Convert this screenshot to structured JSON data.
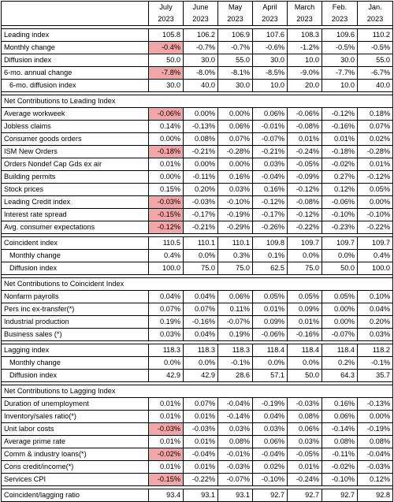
{
  "headers": {
    "months": [
      "July",
      "June",
      "May",
      "April",
      "March",
      "Feb.",
      "Jan."
    ],
    "year": "2023"
  },
  "blocks": [
    {
      "type": "rows",
      "rows": [
        {
          "label": "Leading index",
          "values": [
            "105.8",
            "106.2",
            "106.9",
            "107.6",
            "108.3",
            "109.6",
            "110.2"
          ]
        },
        {
          "label": "Monthly change",
          "values": [
            "-0.4%",
            "-0.7%",
            "-0.7%",
            "-0.6%",
            "-1.2%",
            "-0.5%",
            "-0.5%"
          ],
          "highlight": true
        },
        {
          "label": "Diffusion index",
          "values": [
            "50.0",
            "30.0",
            "55.0",
            "30.0",
            "10.0",
            "30.0",
            "55.0"
          ]
        },
        {
          "label": "6-mo. annual change",
          "values": [
            "-7.8%",
            "-8.0%",
            "-8.1%",
            "-8.5%",
            "-9.0%",
            "-7.7%",
            "-6.7%"
          ],
          "highlight": true
        },
        {
          "label": "6-mo. diffusion index",
          "values": [
            "30.0",
            "40.0",
            "30.0",
            "10.0",
            "20.0",
            "10.0",
            "40.0"
          ],
          "indent": true
        }
      ]
    },
    {
      "type": "section",
      "title": "Net Contributions to Leading Index",
      "rows": [
        {
          "label": "Average workweek",
          "values": [
            "-0.06%",
            "0.00%",
            "0.00%",
            "0.06%",
            "-0.06%",
            "-0.12%",
            "0.18%"
          ],
          "highlight": true
        },
        {
          "label": "Jobless claims",
          "values": [
            "0.14%",
            "-0.13%",
            "0.06%",
            "-0.01%",
            "-0.08%",
            "-0.16%",
            "0.07%"
          ]
        },
        {
          "label": "Consumer goods orders",
          "values": [
            "0.00%",
            "0.08%",
            "0.07%",
            "-0.07%",
            "0.01%",
            "0.01%",
            "0.02%"
          ]
        },
        {
          "label": "ISM New Orders",
          "values": [
            "-0.18%",
            "-0.21%",
            "-0.28%",
            "-0.21%",
            "-0.24%",
            "-0.18%",
            "-0.28%"
          ],
          "highlight": true
        },
        {
          "label": "Orders Nondef Cap Gds ex air",
          "values": [
            "0.01%",
            "0.00%",
            "0.00%",
            "0.03%",
            "-0.05%",
            "-0.02%",
            "0.01%"
          ]
        },
        {
          "label": "Building permits",
          "values": [
            "0.00%",
            "-0.11%",
            "0.16%",
            "-0.04%",
            "-0.09%",
            "0.27%",
            "-0.12%"
          ]
        },
        {
          "label": "Stock prices",
          "values": [
            "0.15%",
            "0.20%",
            "0.03%",
            "0.16%",
            "-0.12%",
            "0.12%",
            "0.05%"
          ]
        },
        {
          "label": "Leading Credit index",
          "values": [
            "-0.03%",
            "-0.03%",
            "-0.10%",
            "-0.12%",
            "-0.08%",
            "-0.06%",
            "0.00%"
          ],
          "highlight": true
        },
        {
          "label": "Interest rate spread",
          "values": [
            "-0.15%",
            "-0.17%",
            "-0.19%",
            "-0.17%",
            "-0.12%",
            "-0.10%",
            "-0.10%"
          ],
          "highlight": true
        },
        {
          "label": "Avg. consumer expectations",
          "values": [
            "-0.12%",
            "-0.21%",
            "-0.29%",
            "-0.26%",
            "-0.22%",
            "-0.23%",
            "-0.22%"
          ],
          "highlight": true
        }
      ]
    },
    {
      "type": "rows",
      "rows": [
        {
          "label": "Coincident index",
          "values": [
            "110.5",
            "110.1",
            "110.1",
            "109.8",
            "109.7",
            "109.7",
            "109.7"
          ]
        },
        {
          "label": "Monthly change",
          "values": [
            "0.4%",
            "0.0%",
            "0.3%",
            "0.1%",
            "0.0%",
            "0.0%",
            "0.4%"
          ],
          "indent": true
        },
        {
          "label": "Diffusion index",
          "values": [
            "100.0",
            "75.0",
            "75.0",
            "62.5",
            "75.0",
            "50.0",
            "100.0"
          ],
          "indent": true
        }
      ]
    },
    {
      "type": "section",
      "title": "Net Contributions to Coincident Index",
      "rows": [
        {
          "label": "Nonfarm payrolls",
          "values": [
            "0.04%",
            "0.04%",
            "0.06%",
            "0.05%",
            "0.05%",
            "0.05%",
            "0.10%"
          ]
        },
        {
          "label": "Pers inc ex-transfer(*)",
          "values": [
            "0.07%",
            "0.07%",
            "0.11%",
            "0.01%",
            "0.09%",
            "0.00%",
            "0.04%"
          ]
        },
        {
          "label": "Industrial production",
          "values": [
            "0.19%",
            "-0.16%",
            "-0.07%",
            "0.09%",
            "0.01%",
            "0.00%",
            "0.20%"
          ]
        },
        {
          "label": "Business sales (*)",
          "values": [
            "0.03%",
            "0.04%",
            "0.19%",
            "-0.06%",
            "-0.16%",
            "-0.07%",
            "0.03%"
          ]
        }
      ]
    },
    {
      "type": "rows",
      "rows": [
        {
          "label": "Lagging index",
          "values": [
            "118.3",
            "118.3",
            "118.3",
            "118.4",
            "118.4",
            "118.4",
            "118.2"
          ]
        },
        {
          "label": "Monthly change",
          "values": [
            "0.0%",
            "0.0%",
            "-0.1%",
            "0.0%",
            "0.0%",
            "0.2%",
            "-0.1%"
          ],
          "indent": true
        },
        {
          "label": "Diffusion index",
          "values": [
            "42.9",
            "42.9",
            "28.6",
            "57.1",
            "50.0",
            "64.3",
            "35.7"
          ],
          "indent": true
        }
      ]
    },
    {
      "type": "section",
      "title": "Net Contributions to Lagging Index",
      "rows": [
        {
          "label": "Duration of unemployment",
          "values": [
            "0.01%",
            "0.07%",
            "-0.04%",
            "-0.19%",
            "-0.03%",
            "0.16%",
            "-0.13%"
          ]
        },
        {
          "label": "Inventory/sales ratio(*)",
          "values": [
            "0.01%",
            "0.01%",
            "-0.14%",
            "0.04%",
            "0.08%",
            "0.06%",
            "0.00%"
          ]
        },
        {
          "label": "Unit labor costs",
          "values": [
            "-0.03%",
            "-0.03%",
            "0.03%",
            "0.03%",
            "0.06%",
            "-0.14%",
            "-0.19%"
          ],
          "highlight": true
        },
        {
          "label": "Average prime rate",
          "values": [
            "0.01%",
            "0.01%",
            "0.08%",
            "0.06%",
            "0.03%",
            "0.08%",
            "0.08%"
          ]
        },
        {
          "label": "Comm & industry loans(*)",
          "values": [
            "-0.02%",
            "-0.04%",
            "-0.01%",
            "-0.04%",
            "-0.05%",
            "-0.11%",
            "-0.04%"
          ],
          "highlight": true
        },
        {
          "label": "Cons credit/income(*)",
          "values": [
            "0.01%",
            "0.01%",
            "-0.03%",
            "0.02%",
            "0.01%",
            "-0.02%",
            "-0.03%"
          ]
        },
        {
          "label": "Services CPI",
          "values": [
            "-0.15%",
            "-0.22%",
            "-0.07%",
            "-0.10%",
            "-0.24%",
            "-0.10%",
            "0.12%"
          ],
          "highlight": true
        }
      ]
    },
    {
      "type": "rows",
      "rows": [
        {
          "label": "Coincident/lagging ratio",
          "values": [
            "93.4",
            "93.1",
            "93.1",
            "92.7",
            "92.7",
            "92.7",
            "92.8"
          ]
        }
      ]
    }
  ],
  "colors": {
    "highlight": "#f4a6a6"
  }
}
